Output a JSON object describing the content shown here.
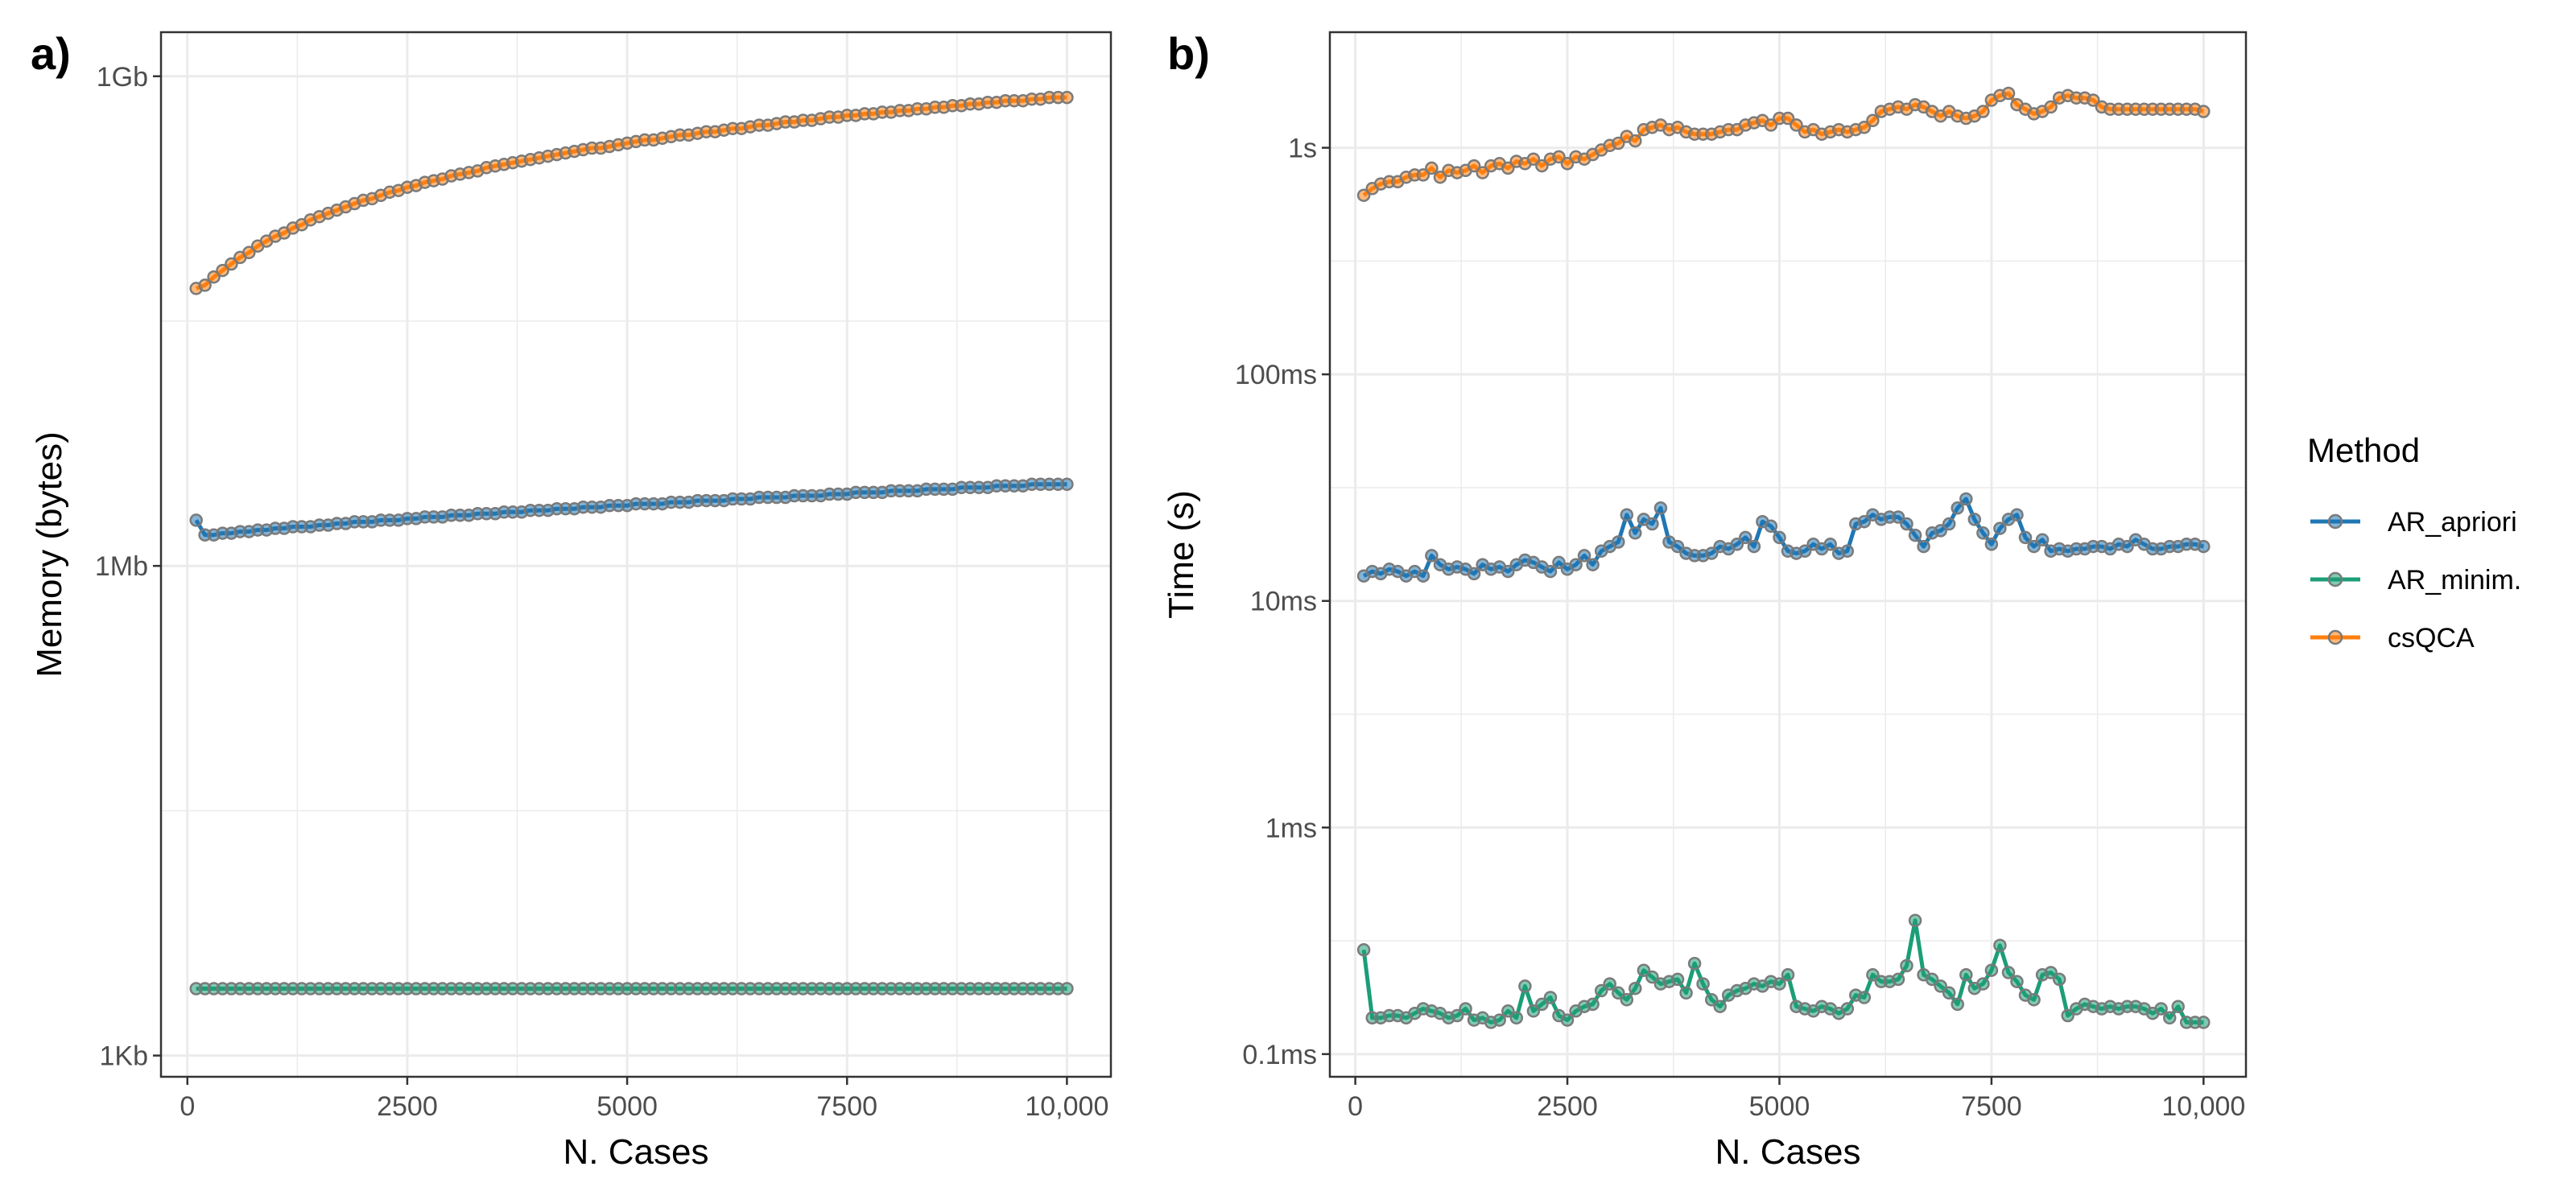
{
  "chart_data": [
    {
      "panel": "a)",
      "type": "line",
      "xlabel": "N. Cases",
      "ylabel": "Memory (bytes)",
      "y_scale": "log10",
      "xlim": [
        -300,
        10500
      ],
      "ylim_log10": [
        2.87,
        9.27
      ],
      "x_ticks": [
        0,
        2500,
        5000,
        7500,
        10000
      ],
      "x_tick_labels": [
        "0",
        "2500",
        "5000",
        "7500",
        "10,000"
      ],
      "y_ticks_log10": [
        3,
        6,
        9
      ],
      "y_tick_labels": [
        "1Kb",
        "1Mb",
        "1Gb"
      ],
      "x_start": 100,
      "x_step": 100,
      "x_count": 100,
      "series": [
        {
          "name": "AR_apriori",
          "color": "#1f77b4",
          "values_log10": [
            6.28,
            6.19,
            6.19,
            6.2,
            6.2,
            6.21,
            6.21,
            6.22,
            6.22,
            6.23,
            6.23,
            6.24,
            6.24,
            6.24,
            6.25,
            6.25,
            6.26,
            6.26,
            6.27,
            6.27,
            6.27,
            6.28,
            6.28,
            6.28,
            6.29,
            6.29,
            6.3,
            6.3,
            6.3,
            6.31,
            6.31,
            6.31,
            6.32,
            6.32,
            6.32,
            6.33,
            6.33,
            6.33,
            6.34,
            6.34,
            6.34,
            6.35,
            6.35,
            6.35,
            6.36,
            6.36,
            6.36,
            6.37,
            6.37,
            6.37,
            6.38,
            6.38,
            6.38,
            6.38,
            6.39,
            6.39,
            6.39,
            6.4,
            6.4,
            6.4,
            6.4,
            6.41,
            6.41,
            6.41,
            6.42,
            6.42,
            6.42,
            6.42,
            6.43,
            6.43,
            6.43,
            6.43,
            6.44,
            6.44,
            6.44,
            6.45,
            6.45,
            6.45,
            6.45,
            6.46,
            6.46,
            6.46,
            6.46,
            6.47,
            6.47,
            6.47,
            6.47,
            6.48,
            6.48,
            6.48,
            6.48,
            6.49,
            6.49,
            6.49,
            6.49,
            6.5,
            6.5,
            6.5,
            6.5,
            6.5
          ]
        },
        {
          "name": "AR_minim.",
          "color": "#1b9e77",
          "values_log10": [
            3.41,
            3.41,
            3.41,
            3.41,
            3.41,
            3.41,
            3.41,
            3.41,
            3.41,
            3.41,
            3.41,
            3.41,
            3.41,
            3.41,
            3.41,
            3.41,
            3.41,
            3.41,
            3.41,
            3.41,
            3.41,
            3.41,
            3.41,
            3.41,
            3.41,
            3.41,
            3.41,
            3.41,
            3.41,
            3.41,
            3.41,
            3.41,
            3.41,
            3.41,
            3.41,
            3.41,
            3.41,
            3.41,
            3.41,
            3.41,
            3.41,
            3.41,
            3.41,
            3.41,
            3.41,
            3.41,
            3.41,
            3.41,
            3.41,
            3.41,
            3.41,
            3.41,
            3.41,
            3.41,
            3.41,
            3.41,
            3.41,
            3.41,
            3.41,
            3.41,
            3.41,
            3.41,
            3.41,
            3.41,
            3.41,
            3.41,
            3.41,
            3.41,
            3.41,
            3.41,
            3.41,
            3.41,
            3.41,
            3.41,
            3.41,
            3.41,
            3.41,
            3.41,
            3.41,
            3.41,
            3.41,
            3.41,
            3.41,
            3.41,
            3.41,
            3.41,
            3.41,
            3.41,
            3.41,
            3.41,
            3.41,
            3.41,
            3.41,
            3.41,
            3.41,
            3.41,
            3.41,
            3.41,
            3.41,
            3.41
          ]
        },
        {
          "name": "csQCA",
          "color": "#ff7f0e",
          "values_log10": [
            7.7,
            7.72,
            7.77,
            7.81,
            7.85,
            7.89,
            7.92,
            7.96,
            7.99,
            8.02,
            8.04,
            8.07,
            8.09,
            8.12,
            8.14,
            8.16,
            8.18,
            8.2,
            8.22,
            8.24,
            8.25,
            8.27,
            8.29,
            8.3,
            8.32,
            8.33,
            8.35,
            8.36,
            8.37,
            8.39,
            8.4,
            8.41,
            8.42,
            8.44,
            8.45,
            8.46,
            8.47,
            8.48,
            8.49,
            8.5,
            8.51,
            8.52,
            8.53,
            8.54,
            8.55,
            8.56,
            8.56,
            8.57,
            8.58,
            8.59,
            8.6,
            8.61,
            8.61,
            8.62,
            8.63,
            8.64,
            8.64,
            8.65,
            8.66,
            8.66,
            8.67,
            8.68,
            8.68,
            8.69,
            8.7,
            8.7,
            8.71,
            8.72,
            8.72,
            8.73,
            8.73,
            8.74,
            8.75,
            8.75,
            8.76,
            8.76,
            8.77,
            8.77,
            8.78,
            8.78,
            8.79,
            8.79,
            8.8,
            8.8,
            8.81,
            8.81,
            8.82,
            8.82,
            8.83,
            8.83,
            8.84,
            8.84,
            8.85,
            8.85,
            8.85,
            8.86,
            8.86,
            8.87,
            8.87,
            8.87
          ]
        }
      ]
    },
    {
      "panel": "b)",
      "type": "line",
      "xlabel": "N. Cases",
      "ylabel": "Time (s)",
      "y_scale": "log10",
      "xlim": [
        -300,
        10500
      ],
      "ylim_log10": [
        -4.1,
        0.51
      ],
      "x_ticks": [
        0,
        2500,
        5000,
        7500,
        10000
      ],
      "x_tick_labels": [
        "0",
        "2500",
        "5000",
        "7500",
        "10,000"
      ],
      "y_ticks_log10": [
        -4,
        -3,
        -2,
        -1,
        0
      ],
      "y_tick_labels": [
        "0.1ms",
        "1ms",
        "10ms",
        "100ms",
        "1s"
      ],
      "x_start": 100,
      "x_step": 100,
      "x_count": 100,
      "series": [
        {
          "name": "AR_apriori",
          "color": "#1f77b4",
          "values_log10": [
            -1.89,
            -1.87,
            -1.88,
            -1.86,
            -1.87,
            -1.89,
            -1.87,
            -1.89,
            -1.8,
            -1.84,
            -1.86,
            -1.85,
            -1.86,
            -1.88,
            -1.84,
            -1.86,
            -1.85,
            -1.87,
            -1.84,
            -1.82,
            -1.83,
            -1.85,
            -1.87,
            -1.83,
            -1.86,
            -1.84,
            -1.8,
            -1.84,
            -1.78,
            -1.76,
            -1.74,
            -1.62,
            -1.7,
            -1.64,
            -1.66,
            -1.59,
            -1.74,
            -1.76,
            -1.79,
            -1.8,
            -1.8,
            -1.79,
            -1.76,
            -1.77,
            -1.75,
            -1.72,
            -1.76,
            -1.65,
            -1.67,
            -1.72,
            -1.78,
            -1.79,
            -1.78,
            -1.75,
            -1.77,
            -1.75,
            -1.79,
            -1.78,
            -1.66,
            -1.65,
            -1.62,
            -1.64,
            -1.63,
            -1.63,
            -1.66,
            -1.71,
            -1.76,
            -1.7,
            -1.69,
            -1.66,
            -1.59,
            -1.55,
            -1.64,
            -1.7,
            -1.75,
            -1.68,
            -1.64,
            -1.62,
            -1.72,
            -1.76,
            -1.73,
            -1.78,
            -1.77,
            -1.78,
            -1.77,
            -1.77,
            -1.76,
            -1.76,
            -1.77,
            -1.75,
            -1.76,
            -1.73,
            -1.75,
            -1.77,
            -1.77,
            -1.76,
            -1.76,
            -1.75,
            -1.75,
            -1.76
          ]
        },
        {
          "name": "AR_minim.",
          "color": "#1b9e77",
          "values_log10": [
            -3.54,
            -3.84,
            -3.84,
            -3.83,
            -3.83,
            -3.84,
            -3.82,
            -3.8,
            -3.81,
            -3.82,
            -3.84,
            -3.83,
            -3.8,
            -3.85,
            -3.84,
            -3.86,
            -3.85,
            -3.81,
            -3.84,
            -3.7,
            -3.81,
            -3.78,
            -3.75,
            -3.83,
            -3.85,
            -3.81,
            -3.79,
            -3.78,
            -3.72,
            -3.69,
            -3.73,
            -3.76,
            -3.71,
            -3.63,
            -3.66,
            -3.69,
            -3.68,
            -3.67,
            -3.73,
            -3.6,
            -3.69,
            -3.76,
            -3.79,
            -3.74,
            -3.72,
            -3.71,
            -3.69,
            -3.7,
            -3.68,
            -3.69,
            -3.65,
            -3.79,
            -3.8,
            -3.81,
            -3.79,
            -3.8,
            -3.82,
            -3.8,
            -3.74,
            -3.75,
            -3.65,
            -3.68,
            -3.68,
            -3.67,
            -3.61,
            -3.41,
            -3.65,
            -3.67,
            -3.7,
            -3.73,
            -3.78,
            -3.65,
            -3.71,
            -3.69,
            -3.63,
            -3.52,
            -3.64,
            -3.68,
            -3.74,
            -3.76,
            -3.65,
            -3.64,
            -3.67,
            -3.83,
            -3.8,
            -3.78,
            -3.79,
            -3.8,
            -3.79,
            -3.8,
            -3.79,
            -3.79,
            -3.8,
            -3.82,
            -3.8,
            -3.84,
            -3.79,
            -3.86,
            -3.86,
            -3.86
          ]
        },
        {
          "name": "csQCA",
          "color": "#ff7f0e",
          "values_log10": [
            -0.21,
            -0.18,
            -0.16,
            -0.15,
            -0.15,
            -0.13,
            -0.12,
            -0.12,
            -0.09,
            -0.13,
            -0.1,
            -0.11,
            -0.1,
            -0.08,
            -0.11,
            -0.08,
            -0.07,
            -0.09,
            -0.06,
            -0.07,
            -0.05,
            -0.08,
            -0.05,
            -0.04,
            -0.07,
            -0.04,
            -0.05,
            -0.03,
            -0.01,
            0.01,
            0.02,
            0.05,
            0.03,
            0.08,
            0.09,
            0.1,
            0.08,
            0.09,
            0.07,
            0.06,
            0.06,
            0.06,
            0.07,
            0.08,
            0.08,
            0.1,
            0.11,
            0.12,
            0.1,
            0.13,
            0.13,
            0.1,
            0.07,
            0.08,
            0.06,
            0.07,
            0.08,
            0.07,
            0.08,
            0.09,
            0.12,
            0.16,
            0.17,
            0.18,
            0.17,
            0.19,
            0.18,
            0.16,
            0.14,
            0.16,
            0.14,
            0.13,
            0.14,
            0.16,
            0.21,
            0.23,
            0.24,
            0.19,
            0.17,
            0.15,
            0.16,
            0.18,
            0.22,
            0.23,
            0.22,
            0.22,
            0.21,
            0.18,
            0.17,
            0.17,
            0.17,
            0.17,
            0.17,
            0.17,
            0.17,
            0.17,
            0.17,
            0.17,
            0.17,
            0.16
          ]
        }
      ]
    }
  ],
  "legend": {
    "title": "Method",
    "items": [
      {
        "label": "AR_apriori",
        "color": "#1f77b4"
      },
      {
        "label": "AR_minim.",
        "color": "#1b9e77"
      },
      {
        "label": "csQCA",
        "color": "#ff7f0e"
      }
    ]
  }
}
